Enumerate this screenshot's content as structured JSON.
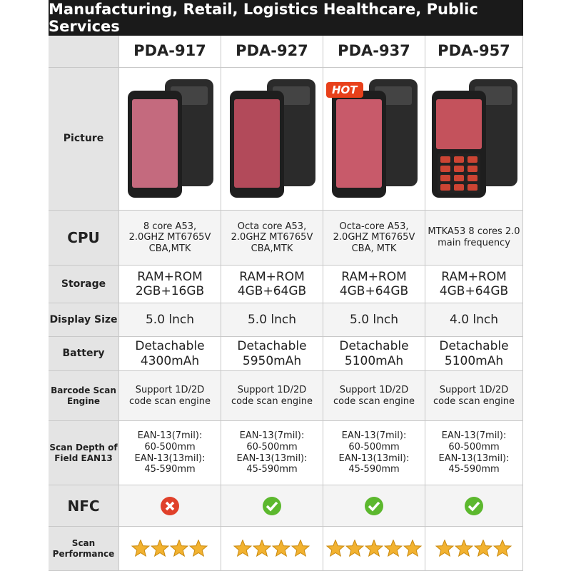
{
  "header": {
    "title": "Manufacturing, Retail, Logistics Healthcare, Public Services"
  },
  "models": [
    "PDA-917",
    "PDA-927",
    "PDA-937",
    "PDA-957"
  ],
  "hot_badge": "HOT",
  "rows": [
    {
      "label": [
        "Picture"
      ]
    },
    {
      "label": [
        "CPU"
      ],
      "cells": [
        [
          "8 core A53,",
          "2.0GHZ MT6765V",
          "CBA,MTK"
        ],
        [
          "Octa core A53,",
          "2.0GHZ MT6765V",
          "CBA,MTK"
        ],
        [
          "Octa-core A53,",
          "2.0GHZ MT6765V",
          "CBA, MTK"
        ],
        [
          "MTKA53 8 cores 2.0",
          "main frequency"
        ]
      ]
    },
    {
      "label": [
        "Storage"
      ],
      "cells": [
        [
          "RAM+ROM",
          "2GB+16GB"
        ],
        [
          "RAM+ROM",
          "4GB+64GB"
        ],
        [
          "RAM+ROM",
          "4GB+64GB"
        ],
        [
          "RAM+ROM",
          "4GB+64GB"
        ]
      ]
    },
    {
      "label": [
        "Display Size"
      ],
      "cells": [
        [
          "5.0 lnch"
        ],
        [
          "5.0 lnch"
        ],
        [
          "5.0 lnch"
        ],
        [
          "4.0 lnch"
        ]
      ]
    },
    {
      "label": [
        "Battery"
      ],
      "cells": [
        [
          "Detachable",
          "4300mAh"
        ],
        [
          "Detachable",
          "5950mAh"
        ],
        [
          "Detachable",
          "5100mAh"
        ],
        [
          "Detachable",
          "5100mAh"
        ]
      ]
    },
    {
      "label": [
        "Barcode Scan",
        "Engine"
      ],
      "cells": [
        [
          "Support 1D/2D",
          "code scan engine"
        ],
        [
          "Support 1D/2D",
          "code scan engine"
        ],
        [
          "Support 1D/2D",
          "code scan engine"
        ],
        [
          "Support 1D/2D",
          "code scan engine"
        ]
      ]
    },
    {
      "label": [
        "Scan Depth of",
        "Field EAN13"
      ],
      "cells": [
        [
          "EAN-13(7mil):",
          "60-500mm",
          "EAN-13(13mil):",
          "45-590mm"
        ],
        [
          "EAN-13(7mil):",
          "60-500mm",
          "EAN-13(13mil):",
          "45-590mm"
        ],
        [
          "EAN-13(7mil):",
          "60-500mm",
          "EAN-13(13mil):",
          "45-590mm"
        ],
        [
          "EAN-13(7mil):",
          "60-500mm",
          "EAN-13(13mil):",
          "45-590mm"
        ]
      ]
    },
    {
      "label": [
        "NFC"
      ],
      "nfc": [
        false,
        true,
        true,
        true
      ]
    },
    {
      "label": [
        "Scan",
        "Performance"
      ],
      "stars": [
        4,
        4,
        5,
        4
      ]
    }
  ]
}
